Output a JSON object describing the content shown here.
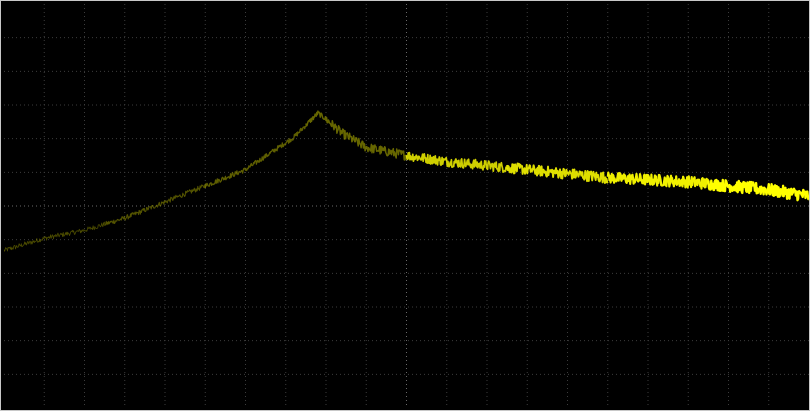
{
  "display": {
    "background_color": "#000000",
    "grid_color": "#3c3c3c",
    "center_grid_color": "#6a6a6a",
    "trace_color_dim": "#8a8a00",
    "trace_color_bright": "#ffff00"
  },
  "chart_data": {
    "type": "line",
    "grid": true,
    "grid_divisions": {
      "x": 20,
      "y": 12
    },
    "xlim": [
      0,
      1
    ],
    "ylim": [
      0,
      1
    ],
    "series": [
      {
        "x": [
          0.0,
          0.05,
          0.1,
          0.15,
          0.2,
          0.25,
          0.3,
          0.33,
          0.36,
          0.375,
          0.385,
          0.39,
          0.4,
          0.42,
          0.45,
          0.5,
          0.55,
          0.6,
          0.65,
          0.7,
          0.75,
          0.8,
          0.85,
          0.9,
          0.95,
          1.0
        ],
        "y": [
          0.39,
          0.42,
          0.44,
          0.47,
          0.51,
          0.55,
          0.59,
          0.63,
          0.67,
          0.7,
          0.72,
          0.73,
          0.715,
          0.68,
          0.645,
          0.625,
          0.61,
          0.6,
          0.59,
          0.58,
          0.57,
          0.565,
          0.56,
          0.55,
          0.54,
          0.525
        ],
        "noise": 0.006
      }
    ]
  }
}
